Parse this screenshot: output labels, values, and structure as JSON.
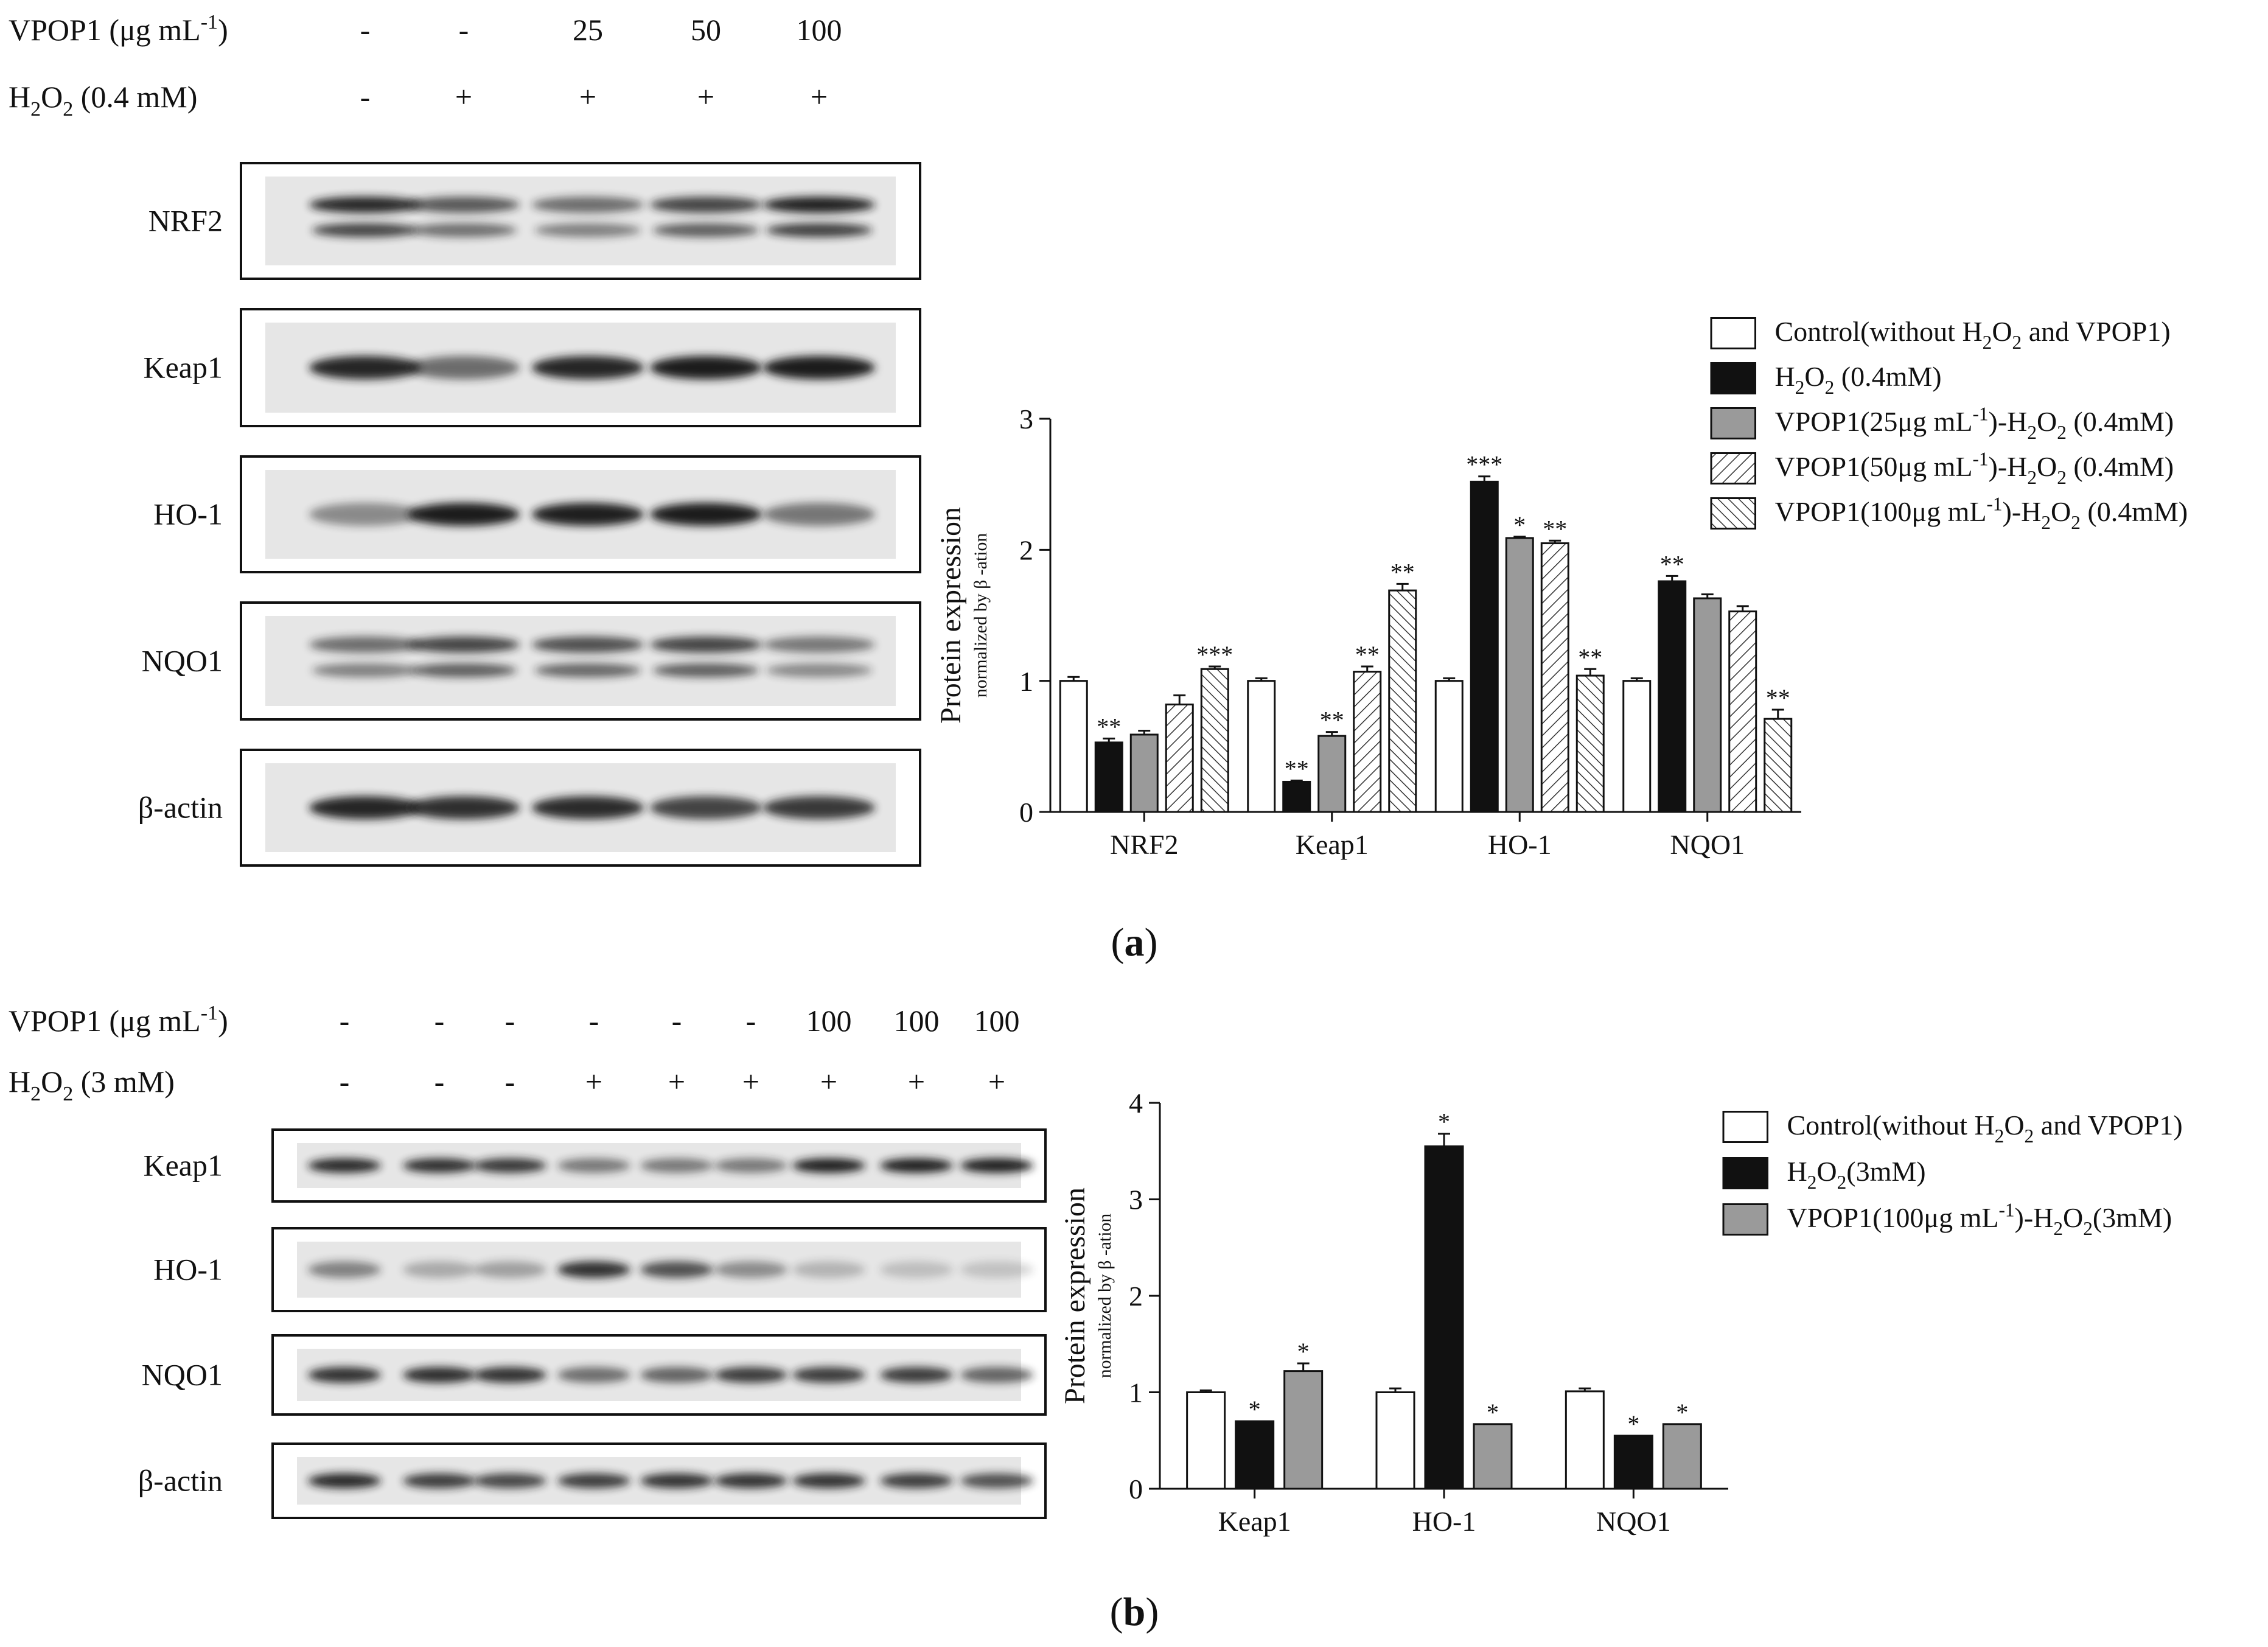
{
  "panels": [
    {
      "id": "a",
      "caption_letter": "a",
      "treatments": {
        "vpop1_label": "VPOP1 (μg mL",
        "vpop1_sup": "-1",
        "vpop1_close": ")",
        "vpop1_values": [
          "-",
          "-",
          "25",
          "50",
          "100"
        ],
        "h2o2_label": "H",
        "h2o2_sub1": "2",
        "h2o2_mid": "O",
        "h2o2_sub2": "2",
        "h2o2_tail": " (0.4 mM)",
        "h2o2_values": [
          "-",
          "+",
          "+",
          "+",
          "+"
        ]
      },
      "blots": [
        "NRF2",
        "Keap1",
        "HO-1",
        "NQO1",
        "β-actin"
      ],
      "legend": [
        {
          "pre": "Control(without H",
          "s1": "2",
          "mid": "O",
          "s2": "2",
          "post": " and VPOP1)"
        },
        {
          "pre": "H",
          "s1": "2",
          "mid": "O",
          "s2": "2",
          "post": " (0.4mM)"
        },
        {
          "pre": "VPOP1(25μg mL",
          "sup": "-1",
          "pre2": ")-H",
          "s1": "2",
          "mid": "O",
          "s2": "2",
          "post": " (0.4mM)"
        },
        {
          "pre": "VPOP1(50μg mL",
          "sup": "-1",
          "pre2": ")-H",
          "s1": "2",
          "mid": "O",
          "s2": "2",
          "post": " (0.4mM)"
        },
        {
          "pre": "VPOP1(100μg mL",
          "sup": "-1",
          "pre2": ")-H",
          "s1": "2",
          "mid": "O",
          "s2": "2",
          "post": " (0.4mM)"
        }
      ],
      "chart_data": {
        "type": "bar",
        "ylabel": "Protein expression",
        "ylabel_sub": "normalized by β -ation",
        "ylim": [
          0,
          3
        ],
        "yticks": [
          "0",
          "1",
          "2",
          "3"
        ],
        "categories": [
          "NRF2",
          "Keap1",
          "HO-1",
          "NQO1"
        ],
        "series": [
          {
            "style": "white",
            "values": [
              1.0,
              1.0,
              1.0,
              1.0
            ],
            "errors": [
              0.03,
              0.02,
              0.02,
              0.02
            ],
            "sig": [
              "",
              "",
              "",
              ""
            ]
          },
          {
            "style": "black",
            "values": [
              0.53,
              0.23,
              2.52,
              1.76
            ],
            "errors": [
              0.03,
              0.01,
              0.04,
              0.04
            ],
            "sig": [
              "**",
              "**",
              "***",
              "**"
            ]
          },
          {
            "style": "gray",
            "values": [
              0.59,
              0.58,
              2.09,
              1.63
            ],
            "errors": [
              0.03,
              0.03,
              0.01,
              0.03
            ],
            "sig": [
              "",
              "**",
              "*",
              ""
            ]
          },
          {
            "style": "hatch-right",
            "values": [
              0.82,
              1.07,
              2.05,
              1.53
            ],
            "errors": [
              0.07,
              0.04,
              0.02,
              0.04
            ],
            "sig": [
              "",
              "**",
              "**",
              ""
            ]
          },
          {
            "style": "hatch-left",
            "values": [
              1.09,
              1.69,
              1.04,
              0.71
            ],
            "errors": [
              0.02,
              0.05,
              0.05,
              0.07
            ],
            "sig": [
              "***",
              "**",
              "**",
              "**"
            ]
          }
        ]
      }
    },
    {
      "id": "b",
      "caption_letter": "b",
      "treatments": {
        "vpop1_label": "VPOP1 (μg mL",
        "vpop1_sup": "-1",
        "vpop1_close": ")",
        "vpop1_values": [
          "-",
          "-",
          "-",
          "-",
          "-",
          "-",
          "100",
          "100",
          "100"
        ],
        "h2o2_label": "H",
        "h2o2_sub1": "2",
        "h2o2_mid": "O",
        "h2o2_sub2": "2",
        "h2o2_tail": " (3 mM)",
        "h2o2_values": [
          "-",
          "-",
          "-",
          "+",
          "+",
          "+",
          "+",
          "+",
          "+"
        ]
      },
      "blots": [
        "Keap1",
        "HO-1",
        "NQO1",
        "β-actin"
      ],
      "legend": [
        {
          "pre": "Control(without H",
          "s1": "2",
          "mid": "O",
          "s2": "2",
          "post": " and VPOP1)"
        },
        {
          "pre": "H",
          "s1": "2",
          "mid": "O",
          "s2": "2",
          "post": "(3mM)"
        },
        {
          "pre": "VPOP1(100μg mL",
          "sup": "-1",
          "pre2": ")-H",
          "s1": "2",
          "mid": "O",
          "s2": "2",
          "post": "(3mM)"
        }
      ],
      "chart_data": {
        "type": "bar",
        "ylabel": "Protein expression",
        "ylabel_sub": "normalized by β -ation",
        "ylim": [
          0,
          4
        ],
        "yticks": [
          "0",
          "1",
          "2",
          "3",
          "4"
        ],
        "categories": [
          "Keap1",
          "HO-1",
          "NQO1"
        ],
        "series": [
          {
            "style": "white",
            "values": [
              1.0,
              1.0,
              1.01
            ],
            "errors": [
              0.02,
              0.04,
              0.03
            ],
            "sig": [
              "",
              "",
              ""
            ]
          },
          {
            "style": "black",
            "values": [
              0.7,
              3.55,
              0.55
            ],
            "errors": [
              0.0,
              0.13,
              0.0
            ],
            "sig": [
              "*",
              "*",
              "*"
            ]
          },
          {
            "style": "gray",
            "values": [
              1.22,
              0.67,
              0.67
            ],
            "errors": [
              0.08,
              0.0,
              0.0
            ],
            "sig": [
              "*",
              "*",
              "*"
            ]
          }
        ]
      }
    }
  ],
  "colors": {
    "black": "#111111",
    "gray": "#9a9a9a",
    "white": "#ffffff",
    "band": "#1c1c1c",
    "membrane": "#e6e6e6"
  }
}
